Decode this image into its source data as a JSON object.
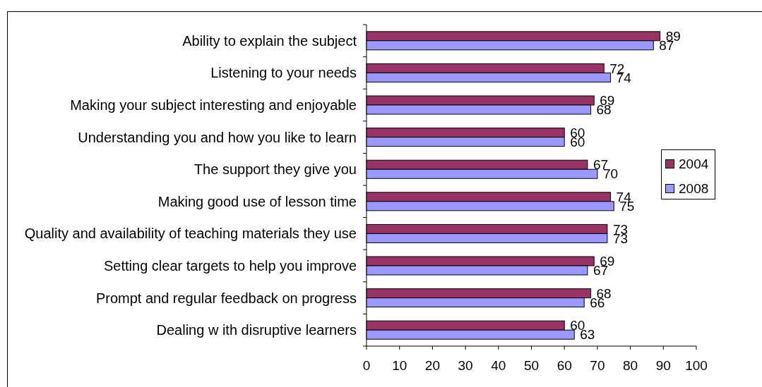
{
  "chart_data": {
    "type": "bar",
    "orientation": "horizontal",
    "categories": [
      "Ability to explain the subject",
      "Listening to your needs",
      "Making your subject interesting and enjoyable",
      "Understanding you and how you like to learn",
      "The support they give you",
      "Making good use of lesson time",
      "Quality and availability of teaching materials they use",
      "Setting clear targets to help you improve",
      "Prompt and regular feedback on progress",
      "Dealing w ith disruptive learners"
    ],
    "series": [
      {
        "name": "2004",
        "color": "#993366",
        "values": [
          89,
          72,
          69,
          60,
          67,
          74,
          73,
          69,
          68,
          60
        ]
      },
      {
        "name": "2008",
        "color": "#9999ff",
        "values": [
          87,
          74,
          68,
          60,
          70,
          75,
          73,
          67,
          66,
          63
        ]
      }
    ],
    "xlim": [
      0,
      100
    ],
    "xticks": [
      0,
      10,
      20,
      30,
      40,
      50,
      60,
      70,
      80,
      90,
      100
    ],
    "data_labels": true,
    "legend": "right",
    "grid": false
  }
}
